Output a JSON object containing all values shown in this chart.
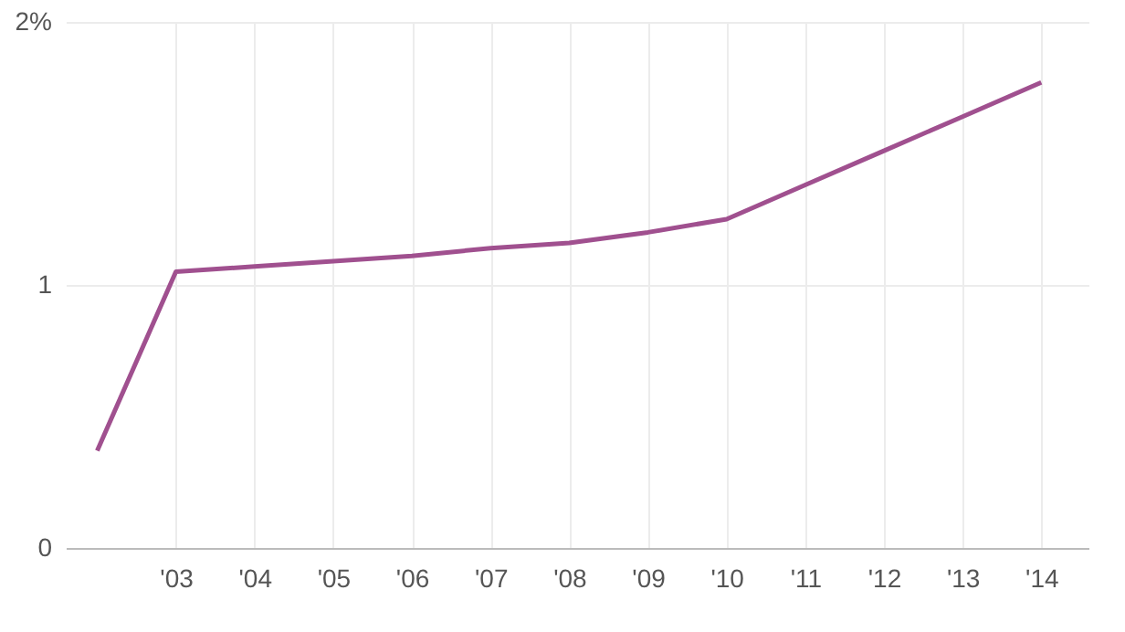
{
  "chart_data": {
    "type": "line",
    "x": [
      2002,
      2003,
      2004,
      2005,
      2006,
      2007,
      2008,
      2009,
      2010,
      2011,
      2012,
      2013,
      2014
    ],
    "series": [
      {
        "color": "#a0508f",
        "values": [
          0.37,
          1.05,
          1.07,
          1.09,
          1.11,
          1.14,
          1.16,
          1.2,
          1.25,
          1.38,
          1.51,
          1.64,
          1.77
        ]
      }
    ],
    "xlim": [
      2001.6,
      2014.6
    ],
    "xticks": [
      {
        "value": 2003,
        "label": "'03"
      },
      {
        "value": 2004,
        "label": "'04"
      },
      {
        "value": 2005,
        "label": "'05"
      },
      {
        "value": 2006,
        "label": "'06"
      },
      {
        "value": 2007,
        "label": "'07"
      },
      {
        "value": 2008,
        "label": "'08"
      },
      {
        "value": 2009,
        "label": "'09"
      },
      {
        "value": 2010,
        "label": "'10"
      },
      {
        "value": 2011,
        "label": "'11"
      },
      {
        "value": 2012,
        "label": "'12"
      },
      {
        "value": 2013,
        "label": "'13"
      },
      {
        "value": 2014,
        "label": "'14"
      }
    ],
    "ylim": [
      0,
      2
    ],
    "yticks": [
      0,
      1,
      {
        "value": 2,
        "label": "2%"
      }
    ],
    "grid": true,
    "marker": "none",
    "line_style": "solid"
  }
}
